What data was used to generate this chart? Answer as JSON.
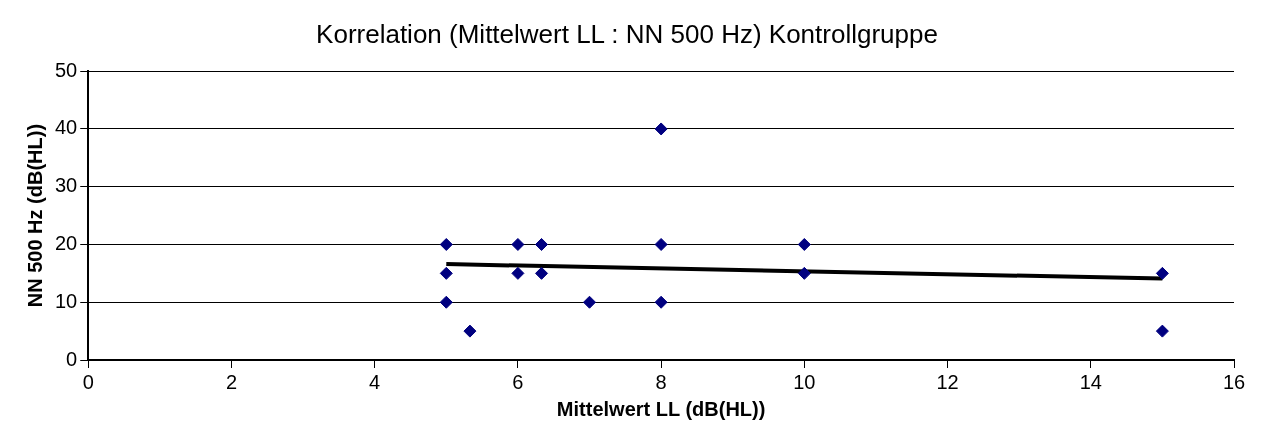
{
  "chart_data": {
    "type": "scatter",
    "title": "Korrelation (Mittelwert LL : NN 500 Hz) Kontrollgruppe",
    "xlabel": "Mittelwert LL (dB(HL))",
    "ylabel": "NN 500 Hz (dB(HL))",
    "xlim": [
      0,
      16
    ],
    "xticks": [
      0,
      2,
      4,
      6,
      8,
      10,
      12,
      14,
      16
    ],
    "ylim": [
      0,
      50
    ],
    "yticks": [
      0,
      10,
      20,
      30,
      40,
      50
    ],
    "grid": "y",
    "legend": false,
    "marker": "diamond",
    "series": [
      {
        "type": "scatter",
        "color": "#000080",
        "x": [
          5,
          5,
          5,
          5.33,
          6,
          6,
          6.33,
          6.33,
          7,
          8,
          8,
          8,
          10,
          10,
          15,
          15
        ],
        "values": [
          20,
          15,
          10,
          5,
          20,
          15,
          20,
          15,
          10,
          40,
          20,
          10,
          20,
          15,
          15,
          5
        ]
      },
      {
        "type": "line",
        "color": "#000000",
        "marker": "none",
        "x": [
          5,
          15
        ],
        "values": [
          16.6,
          14.1
        ]
      }
    ]
  }
}
